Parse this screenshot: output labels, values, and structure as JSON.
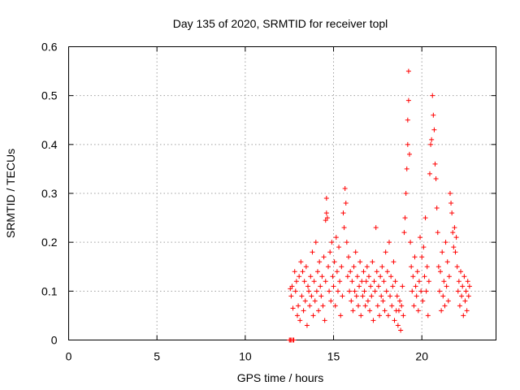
{
  "chart_data": {
    "type": "scatter",
    "title": "Day 135 of 2020, SRMTID for receiver topl",
    "xlabel": "GPS time / hours",
    "ylabel": "SRMTID / TECUs",
    "xlim": [
      0,
      24.2
    ],
    "ylim": [
      0,
      0.6
    ],
    "xticks": [
      0,
      5,
      10,
      15,
      20
    ],
    "yticks": [
      0,
      0.1,
      0.2,
      0.3,
      0.4,
      0.5,
      0.6
    ],
    "xtick_labels": [
      "0",
      "5",
      "10",
      "15",
      "20"
    ],
    "ytick_labels": [
      "0",
      "0.1",
      "0.2",
      "0.3",
      "0.4",
      "0.5",
      "0.6"
    ],
    "grid": true,
    "marker": "+",
    "color": "#ff0000",
    "series": [
      {
        "name": "topl",
        "points": [
          [
            12.5,
            0.0
          ],
          [
            12.55,
            0.0
          ],
          [
            12.6,
            0.0
          ],
          [
            12.7,
            0.0
          ],
          [
            12.75,
            0.0
          ],
          [
            12.55,
            0.105
          ],
          [
            12.6,
            0.09
          ],
          [
            12.65,
            0.11
          ],
          [
            12.7,
            0.065
          ],
          [
            12.8,
            0.14
          ],
          [
            12.85,
            0.1
          ],
          [
            12.9,
            0.12
          ],
          [
            12.95,
            0.05
          ],
          [
            13.0,
            0.07
          ],
          [
            13.05,
            0.13
          ],
          [
            13.1,
            0.04
          ],
          [
            13.15,
            0.16
          ],
          [
            13.2,
            0.09
          ],
          [
            13.25,
            0.14
          ],
          [
            13.3,
            0.06
          ],
          [
            13.35,
            0.12
          ],
          [
            13.4,
            0.08
          ],
          [
            13.45,
            0.15
          ],
          [
            13.5,
            0.03
          ],
          [
            13.55,
            0.11
          ],
          [
            13.6,
            0.1
          ],
          [
            13.65,
            0.07
          ],
          [
            13.7,
            0.13
          ],
          [
            13.75,
            0.09
          ],
          [
            13.8,
            0.18
          ],
          [
            13.85,
            0.05
          ],
          [
            13.9,
            0.12
          ],
          [
            13.95,
            0.08
          ],
          [
            14.0,
            0.2
          ],
          [
            14.05,
            0.1
          ],
          [
            14.1,
            0.14
          ],
          [
            14.15,
            0.06
          ],
          [
            14.2,
            0.16
          ],
          [
            14.25,
            0.11
          ],
          [
            14.3,
            0.09
          ],
          [
            14.35,
            0.13
          ],
          [
            14.4,
            0.07
          ],
          [
            14.45,
            0.17
          ],
          [
            14.5,
            0.04
          ],
          [
            14.55,
            0.12
          ],
          [
            14.6,
            0.29
          ],
          [
            14.6,
            0.26
          ],
          [
            14.65,
            0.25
          ],
          [
            14.55,
            0.245
          ],
          [
            14.7,
            0.15
          ],
          [
            14.75,
            0.1
          ],
          [
            14.8,
            0.18
          ],
          [
            14.85,
            0.08
          ],
          [
            14.9,
            0.2
          ],
          [
            14.95,
            0.13
          ],
          [
            15.0,
            0.11
          ],
          [
            15.05,
            0.16
          ],
          [
            15.1,
            0.07
          ],
          [
            15.15,
            0.21
          ],
          [
            15.2,
            0.14
          ],
          [
            15.25,
            0.1
          ],
          [
            15.3,
            0.19
          ],
          [
            15.35,
            0.12
          ],
          [
            15.4,
            0.05
          ],
          [
            15.45,
            0.15
          ],
          [
            15.5,
            0.09
          ],
          [
            15.55,
            0.26
          ],
          [
            15.6,
            0.23
          ],
          [
            15.65,
            0.31
          ],
          [
            15.7,
            0.28
          ],
          [
            15.75,
            0.2
          ],
          [
            15.8,
            0.13
          ],
          [
            15.85,
            0.17
          ],
          [
            15.9,
            0.1
          ],
          [
            15.95,
            0.14
          ],
          [
            16.0,
            0.08
          ],
          [
            16.05,
            0.12
          ],
          [
            16.1,
            0.06
          ],
          [
            16.15,
            0.15
          ],
          [
            16.2,
            0.1
          ],
          [
            16.25,
            0.18
          ],
          [
            16.3,
            0.09
          ],
          [
            16.35,
            0.13
          ],
          [
            16.4,
            0.07
          ],
          [
            16.45,
            0.11
          ],
          [
            16.5,
            0.16
          ],
          [
            16.55,
            0.05
          ],
          [
            16.6,
            0.12
          ],
          [
            16.65,
            0.09
          ],
          [
            16.7,
            0.14
          ],
          [
            16.75,
            0.1
          ],
          [
            16.8,
            0.07
          ],
          [
            16.85,
            0.12
          ],
          [
            16.9,
            0.15
          ],
          [
            16.95,
            0.08
          ],
          [
            17.0,
            0.13
          ],
          [
            17.05,
            0.06
          ],
          [
            17.1,
            0.11
          ],
          [
            17.15,
            0.09
          ],
          [
            17.2,
            0.16
          ],
          [
            17.25,
            0.04
          ],
          [
            17.3,
            0.12
          ],
          [
            17.35,
            0.1
          ],
          [
            17.4,
            0.23
          ],
          [
            17.45,
            0.14
          ],
          [
            17.5,
            0.07
          ],
          [
            17.55,
            0.11
          ],
          [
            17.6,
            0.05
          ],
          [
            17.65,
            0.13
          ],
          [
            17.7,
            0.09
          ],
          [
            17.75,
            0.15
          ],
          [
            17.8,
            0.08
          ],
          [
            17.85,
            0.12
          ],
          [
            17.9,
            0.06
          ],
          [
            17.95,
            0.18
          ],
          [
            18.0,
            0.1
          ],
          [
            18.05,
            0.14
          ],
          [
            18.1,
            0.05
          ],
          [
            18.15,
            0.2
          ],
          [
            18.2,
            0.09
          ],
          [
            18.25,
            0.13
          ],
          [
            18.3,
            0.07
          ],
          [
            18.35,
            0.11
          ],
          [
            18.4,
            0.16
          ],
          [
            18.45,
            0.04
          ],
          [
            18.5,
            0.12
          ],
          [
            18.55,
            0.06
          ],
          [
            18.6,
            0.09
          ],
          [
            18.65,
            0.03
          ],
          [
            18.7,
            0.06
          ],
          [
            18.75,
            0.08
          ],
          [
            18.8,
            0.02
          ],
          [
            18.85,
            0.07
          ],
          [
            18.9,
            0.11
          ],
          [
            18.95,
            0.05
          ],
          [
            19.0,
            0.22
          ],
          [
            19.05,
            0.25
          ],
          [
            19.1,
            0.3
          ],
          [
            19.15,
            0.35
          ],
          [
            19.2,
            0.4
          ],
          [
            19.2,
            0.45
          ],
          [
            19.25,
            0.49
          ],
          [
            19.25,
            0.55
          ],
          [
            19.3,
            0.38
          ],
          [
            19.35,
            0.2
          ],
          [
            19.4,
            0.15
          ],
          [
            19.45,
            0.1
          ],
          [
            19.5,
            0.13
          ],
          [
            19.55,
            0.07
          ],
          [
            19.6,
            0.17
          ],
          [
            19.65,
            0.11
          ],
          [
            19.7,
            0.09
          ],
          [
            19.75,
            0.14
          ],
          [
            19.8,
            0.06
          ],
          [
            19.85,
            0.12
          ],
          [
            19.9,
            0.21
          ],
          [
            19.95,
            0.1
          ],
          [
            20.0,
            0.17
          ],
          [
            20.05,
            0.08
          ],
          [
            20.1,
            0.19
          ],
          [
            20.15,
            0.13
          ],
          [
            20.2,
            0.25
          ],
          [
            20.25,
            0.1
          ],
          [
            20.3,
            0.15
          ],
          [
            20.35,
            0.05
          ],
          [
            20.4,
            0.12
          ],
          [
            20.45,
            0.34
          ],
          [
            20.5,
            0.4
          ],
          [
            20.55,
            0.41
          ],
          [
            20.6,
            0.5
          ],
          [
            20.65,
            0.46
          ],
          [
            20.7,
            0.43
          ],
          [
            20.75,
            0.36
          ],
          [
            20.8,
            0.33
          ],
          [
            20.85,
            0.27
          ],
          [
            20.9,
            0.22
          ],
          [
            20.95,
            0.15
          ],
          [
            21.0,
            0.1
          ],
          [
            21.05,
            0.14
          ],
          [
            21.1,
            0.06
          ],
          [
            21.15,
            0.18
          ],
          [
            21.2,
            0.09
          ],
          [
            21.25,
            0.12
          ],
          [
            21.3,
            0.07
          ],
          [
            21.35,
            0.2
          ],
          [
            21.4,
            0.11
          ],
          [
            21.45,
            0.16
          ],
          [
            21.5,
            0.08
          ],
          [
            21.55,
            0.13
          ],
          [
            21.6,
            0.3
          ],
          [
            21.65,
            0.28
          ],
          [
            21.7,
            0.26
          ],
          [
            21.75,
            0.22
          ],
          [
            21.8,
            0.19
          ],
          [
            21.85,
            0.23
          ],
          [
            21.9,
            0.18
          ],
          [
            21.95,
            0.21
          ],
          [
            22.0,
            0.15
          ],
          [
            22.05,
            0.1
          ],
          [
            22.1,
            0.12
          ],
          [
            22.15,
            0.07
          ],
          [
            22.2,
            0.14
          ],
          [
            22.25,
            0.09
          ],
          [
            22.3,
            0.11
          ],
          [
            22.35,
            0.05
          ],
          [
            22.4,
            0.13
          ],
          [
            22.45,
            0.08
          ],
          [
            22.5,
            0.1
          ],
          [
            22.55,
            0.06
          ],
          [
            22.6,
            0.12
          ],
          [
            22.65,
            0.09
          ],
          [
            22.7,
            0.11
          ]
        ]
      }
    ]
  }
}
